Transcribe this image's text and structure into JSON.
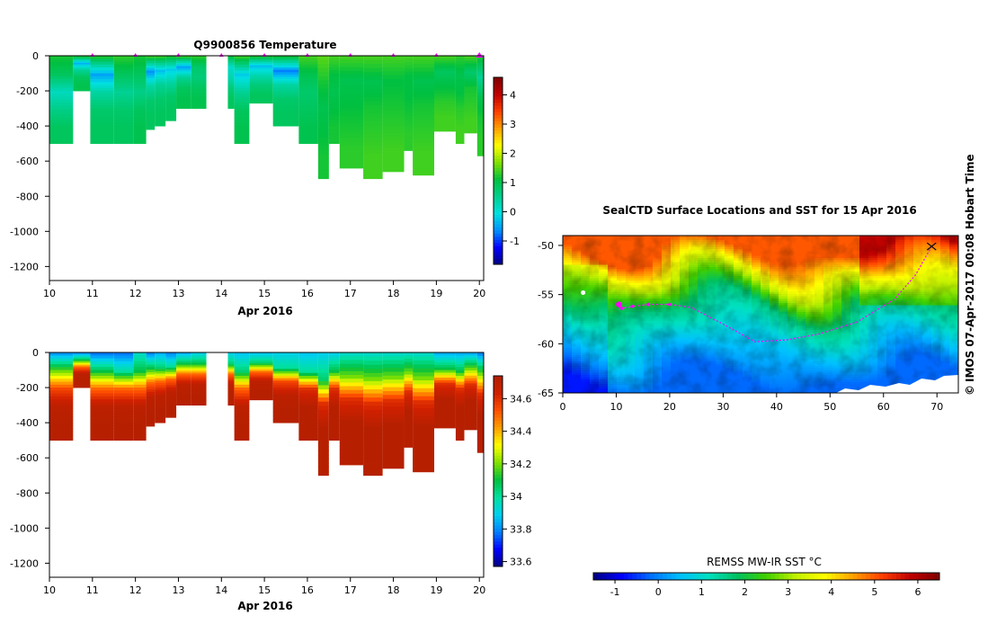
{
  "side_text": {
    "copyright": "©",
    "imos_stamp": "IMOS 07-Apr-2017 00:08 Hobart Time"
  },
  "colors": {
    "temp_stops": [
      "#00007f",
      "#0000ff",
      "#0090ff",
      "#00e0e0",
      "#00d090",
      "#00c040",
      "#80e000",
      "#ffff00",
      "#ffa000",
      "#ff4000",
      "#c00000",
      "#800000"
    ],
    "sal_stops": [
      "#00007f",
      "#0000ff",
      "#0080ff",
      "#00d0f0",
      "#00e0a0",
      "#00c040",
      "#80e000",
      "#ffff00",
      "#ffa000",
      "#ff5000",
      "#d02000",
      "#b02000"
    ],
    "sst_stops": [
      "#00007f",
      "#0000ff",
      "#0070ff",
      "#00c0ff",
      "#00e0c0",
      "#00c060",
      "#40d000",
      "#c0f000",
      "#ffff00",
      "#ffa000",
      "#ff4000",
      "#c00000",
      "#800000"
    ],
    "marker": "#ff00ff"
  },
  "chart_data": [
    {
      "id": "temperature",
      "type": "heatmap",
      "title": "Q9900856  Temperature",
      "xlabel": "Apr 2016",
      "ylabel": "",
      "xlim": [
        10,
        20.1
      ],
      "ylim": [
        -1280,
        0
      ],
      "xticks": [
        "10",
        "11",
        "12",
        "13",
        "14",
        "15",
        "16",
        "17",
        "18",
        "19",
        "20"
      ],
      "yticks": [
        "0",
        "-200",
        "-400",
        "-600",
        "-800",
        "-1000",
        "-1200"
      ],
      "profile_markers_day": [
        11,
        12,
        13,
        14,
        15,
        16,
        17,
        18,
        19,
        20
      ],
      "colorbar": {
        "min": -1.8,
        "max": 4.6,
        "ticks": [
          "-1",
          "0",
          "1",
          "2",
          "3",
          "4"
        ]
      },
      "profiles": [
        {
          "day": 10.0,
          "depth": 500,
          "values": [
            1.2,
            0.9,
            0.2,
            0.6,
            0.9
          ]
        },
        {
          "day": 10.55,
          "depth": 200,
          "values": [
            1.2,
            -0.4,
            0.5,
            0.9,
            1.0
          ]
        },
        {
          "day": 10.95,
          "depth": 500,
          "values": [
            1.2,
            -0.5,
            0.4,
            0.8,
            0.9
          ]
        },
        {
          "day": 11.5,
          "depth": 500,
          "values": [
            1.3,
            0.9,
            0.5,
            0.8,
            0.9
          ]
        },
        {
          "day": 11.95,
          "depth": 500,
          "values": [
            1.2,
            0.9,
            0.6,
            0.9,
            1.0
          ]
        },
        {
          "day": 12.25,
          "depth": 420,
          "values": [
            1.3,
            -0.6,
            0.4,
            0.8,
            0.9
          ]
        },
        {
          "day": 12.45,
          "depth": 400,
          "values": [
            1.3,
            -0.3,
            0.5,
            0.8,
            0.9
          ]
        },
        {
          "day": 12.7,
          "depth": 370,
          "values": [
            1.2,
            -0.2,
            0.4,
            0.8,
            0.9
          ]
        },
        {
          "day": 12.95,
          "depth": 300,
          "values": [
            1.3,
            -0.5,
            0.5,
            0.9,
            1.0
          ]
        },
        {
          "day": 13.3,
          "depth": 300,
          "values": [
            1.3,
            0.8,
            0.7,
            0.9,
            1.0
          ]
        },
        {
          "day": 14.15,
          "depth": 300,
          "values": [
            1.1,
            0.1,
            0.3,
            0.7,
            0.9
          ]
        },
        {
          "day": 14.3,
          "depth": 500,
          "values": [
            1.3,
            -0.2,
            0.5,
            0.9,
            1.0
          ]
        },
        {
          "day": 14.65,
          "depth": 270,
          "values": [
            1.2,
            -0.3,
            0.3,
            0.7,
            0.9
          ]
        },
        {
          "day": 15.2,
          "depth": 400,
          "values": [
            1.1,
            -0.7,
            0.4,
            0.8,
            0.9
          ]
        },
        {
          "day": 15.8,
          "depth": 500,
          "values": [
            1.4,
            1.0,
            0.8,
            0.9,
            1.0
          ]
        },
        {
          "day": 16.25,
          "depth": 700,
          "values": [
            1.5,
            1.2,
            1.0,
            1.1,
            1.2
          ]
        },
        {
          "day": 16.5,
          "depth": 500,
          "values": [
            1.4,
            1.1,
            1.0,
            1.1,
            1.2
          ]
        },
        {
          "day": 16.75,
          "depth": 640,
          "values": [
            1.4,
            1.0,
            1.1,
            1.2,
            1.3
          ]
        },
        {
          "day": 17.3,
          "depth": 700,
          "values": [
            1.4,
            1.0,
            1.2,
            1.3,
            1.4
          ]
        },
        {
          "day": 17.75,
          "depth": 660,
          "values": [
            1.4,
            1.1,
            1.2,
            1.3,
            1.4
          ]
        },
        {
          "day": 18.25,
          "depth": 540,
          "values": [
            1.4,
            1.1,
            1.1,
            1.2,
            1.3
          ]
        },
        {
          "day": 18.45,
          "depth": 680,
          "values": [
            1.4,
            1.0,
            1.2,
            1.3,
            1.4
          ]
        },
        {
          "day": 18.95,
          "depth": 430,
          "values": [
            1.4,
            0.9,
            1.1,
            1.3,
            1.4
          ]
        },
        {
          "day": 19.45,
          "depth": 500,
          "values": [
            1.3,
            1.0,
            1.1,
            1.3,
            1.4
          ]
        },
        {
          "day": 19.65,
          "depth": 440,
          "values": [
            1.4,
            0.8,
            1.2,
            1.3,
            1.4
          ]
        },
        {
          "day": 19.95,
          "depth": 570,
          "values": [
            1.2,
            0.5,
            1.0,
            1.2,
            1.3
          ]
        }
      ],
      "gap": [
        13.65,
        14.15
      ]
    },
    {
      "id": "salinity",
      "type": "heatmap",
      "title": "",
      "xlabel": "Apr 2016",
      "ylabel": "",
      "xlim": [
        10,
        20.1
      ],
      "ylim": [
        -1280,
        0
      ],
      "xticks": [
        "10",
        "11",
        "12",
        "13",
        "14",
        "15",
        "16",
        "17",
        "18",
        "19",
        "20"
      ],
      "yticks": [
        "0",
        "-200",
        "-400",
        "-600",
        "-800",
        "-1000",
        "-1200"
      ],
      "colorbar": {
        "min": 33.57,
        "max": 34.74,
        "ticks": [
          "33.6",
          "33.8",
          "34",
          "34.2",
          "34.4",
          "34.6"
        ]
      },
      "profiles": [
        {
          "day": 10.0,
          "depth": 500,
          "values": [
            33.82,
            34.2,
            34.55,
            34.7,
            34.72
          ]
        },
        {
          "day": 10.55,
          "depth": 200,
          "values": [
            33.8,
            34.1,
            34.5,
            34.7,
            34.72
          ]
        },
        {
          "day": 10.95,
          "depth": 500,
          "values": [
            33.78,
            34.1,
            34.5,
            34.7,
            34.72
          ]
        },
        {
          "day": 11.5,
          "depth": 500,
          "values": [
            33.78,
            34.0,
            34.5,
            34.7,
            34.72
          ]
        },
        {
          "day": 11.95,
          "depth": 500,
          "values": [
            33.95,
            34.1,
            34.5,
            34.7,
            34.72
          ]
        },
        {
          "day": 12.25,
          "depth": 420,
          "values": [
            33.8,
            34.1,
            34.5,
            34.7,
            34.72
          ]
        },
        {
          "day": 12.45,
          "depth": 400,
          "values": [
            33.85,
            34.05,
            34.5,
            34.7,
            34.72
          ]
        },
        {
          "day": 12.7,
          "depth": 370,
          "values": [
            33.8,
            34.0,
            34.5,
            34.7,
            34.72
          ]
        },
        {
          "day": 12.95,
          "depth": 300,
          "values": [
            33.85,
            34.1,
            34.5,
            34.7,
            34.72
          ]
        },
        {
          "day": 13.3,
          "depth": 300,
          "values": [
            33.9,
            34.1,
            34.5,
            34.7,
            34.72
          ]
        },
        {
          "day": 14.15,
          "depth": 300,
          "values": [
            33.9,
            34.05,
            34.5,
            34.7,
            34.72
          ]
        },
        {
          "day": 14.3,
          "depth": 500,
          "values": [
            33.88,
            34.05,
            34.5,
            34.7,
            34.72
          ]
        },
        {
          "day": 14.65,
          "depth": 270,
          "values": [
            33.88,
            34.05,
            34.5,
            34.7,
            34.72
          ]
        },
        {
          "day": 15.2,
          "depth": 400,
          "values": [
            33.9,
            34.0,
            34.55,
            34.7,
            34.72
          ]
        },
        {
          "day": 15.8,
          "depth": 500,
          "values": [
            33.88,
            34.0,
            34.6,
            34.72,
            34.72
          ]
        },
        {
          "day": 16.25,
          "depth": 700,
          "values": [
            33.9,
            34.05,
            34.6,
            34.72,
            34.72
          ]
        },
        {
          "day": 16.5,
          "depth": 500,
          "values": [
            33.9,
            34.1,
            34.6,
            34.72,
            34.72
          ]
        },
        {
          "day": 16.75,
          "depth": 640,
          "values": [
            33.95,
            34.2,
            34.6,
            34.72,
            34.72
          ]
        },
        {
          "day": 17.3,
          "depth": 700,
          "values": [
            33.95,
            34.2,
            34.6,
            34.72,
            34.72
          ]
        },
        {
          "day": 17.75,
          "depth": 660,
          "values": [
            33.95,
            34.2,
            34.6,
            34.72,
            34.72
          ]
        },
        {
          "day": 18.25,
          "depth": 540,
          "values": [
            33.95,
            34.2,
            34.6,
            34.72,
            34.72
          ]
        },
        {
          "day": 18.45,
          "depth": 680,
          "values": [
            33.95,
            34.2,
            34.6,
            34.72,
            34.72
          ]
        },
        {
          "day": 18.95,
          "depth": 430,
          "values": [
            33.85,
            34.1,
            34.6,
            34.72,
            34.72
          ]
        },
        {
          "day": 19.45,
          "depth": 500,
          "values": [
            33.85,
            34.1,
            34.6,
            34.72,
            34.72
          ]
        },
        {
          "day": 19.65,
          "depth": 440,
          "values": [
            33.85,
            34.2,
            34.6,
            34.72,
            34.72
          ]
        },
        {
          "day": 19.95,
          "depth": 570,
          "values": [
            33.8,
            34.2,
            34.6,
            34.72,
            34.72
          ]
        }
      ],
      "gap": [
        13.65,
        14.15
      ]
    },
    {
      "id": "sst-map",
      "type": "heatmap",
      "title": "SealCTD Surface Locations and SST for 15 Apr 2016",
      "xlim": [
        0,
        74
      ],
      "ylim": [
        -65,
        -49
      ],
      "xticks": [
        "0",
        "10",
        "20",
        "30",
        "40",
        "50",
        "60",
        "70"
      ],
      "yticks": [
        "-50",
        "-55",
        "-60",
        "-65"
      ],
      "colorbar_label": "REMSS MW-IR SST °C",
      "colorbar": {
        "min": -1.5,
        "max": 6.5,
        "ticks": [
          "-1",
          "0",
          "1",
          "2",
          "3",
          "4",
          "5",
          "6"
        ]
      },
      "sst_zones": [
        {
          "lat_from": -49,
          "lat_to": -52,
          "sst": 5.0
        },
        {
          "lat_from": -52,
          "lat_to": -55,
          "sst": 3.2
        },
        {
          "lat_from": -55,
          "lat_to": -58,
          "sst": 1.6
        },
        {
          "lat_from": -58,
          "lat_to": -62,
          "sst": 0.7
        },
        {
          "lat_from": -62,
          "lat_to": -65,
          "sst": -0.2
        }
      ],
      "track": [
        {
          "lon": 69,
          "lat": -50.1
        },
        {
          "lon": 66,
          "lat": -53.0
        },
        {
          "lon": 62,
          "lat": -55.5
        },
        {
          "lon": 55,
          "lat": -57.8
        },
        {
          "lon": 48,
          "lat": -59.0
        },
        {
          "lon": 42,
          "lat": -59.6
        },
        {
          "lon": 36,
          "lat": -59.8
        },
        {
          "lon": 30,
          "lat": -58.0
        },
        {
          "lon": 24,
          "lat": -56.3
        },
        {
          "lon": 20,
          "lat": -56.0
        },
        {
          "lon": 16,
          "lat": -56.0
        },
        {
          "lon": 13,
          "lat": -56.2
        },
        {
          "lon": 11,
          "lat": -56.4
        },
        {
          "lon": 10.5,
          "lat": -56.0
        }
      ],
      "island_point": {
        "lon": 3.8,
        "lat": -54.8
      }
    }
  ]
}
